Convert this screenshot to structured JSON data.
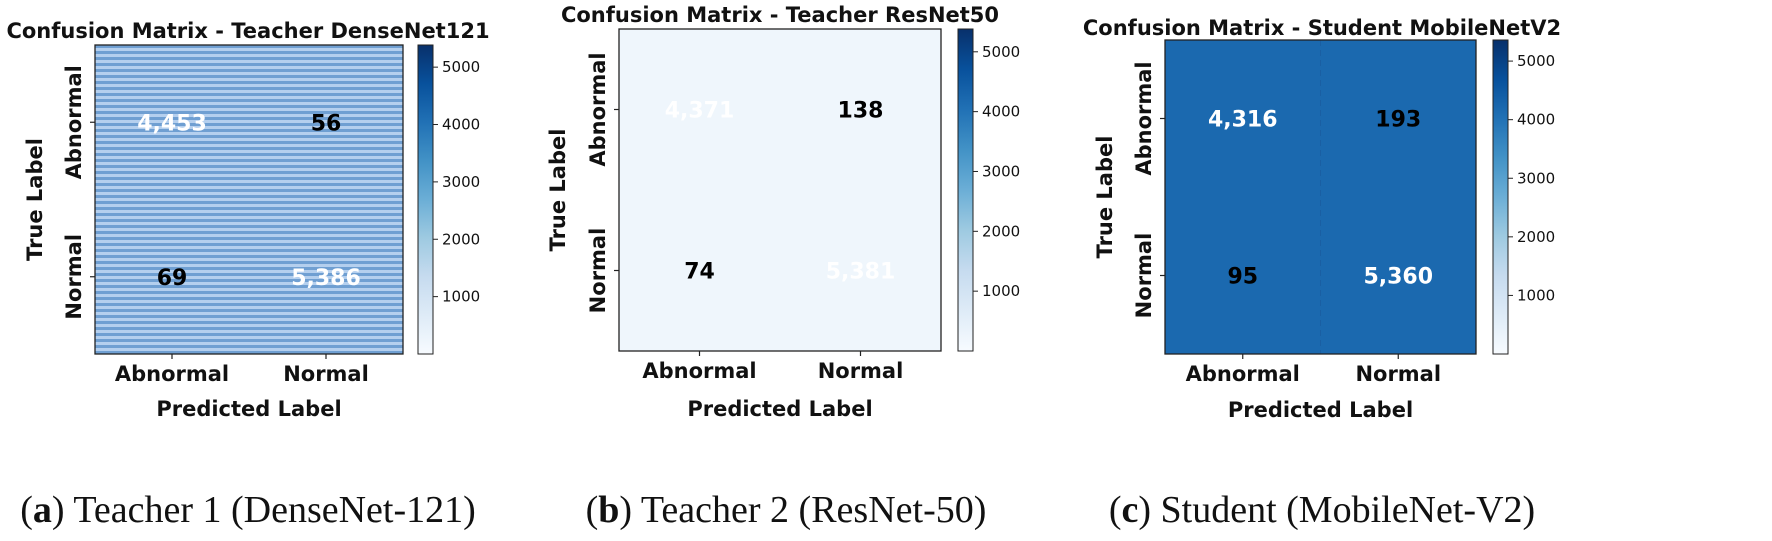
{
  "figure": {
    "captions": [
      {
        "letter": "a",
        "text": "Teacher 1 (DenseNet-121)"
      },
      {
        "letter": "b",
        "text": "Teacher 2 (ResNet-50)"
      },
      {
        "letter": "c",
        "text": "Student (MobileNet-V2)"
      }
    ]
  },
  "chart_data": [
    {
      "type": "heatmap",
      "title": "Confusion Matrix - Teacher DenseNet121",
      "xlabel": "Predicted Label",
      "ylabel": "True Label",
      "x_categories": [
        "Abnormal",
        "Normal"
      ],
      "y_categories": [
        "Abnormal",
        "Normal"
      ],
      "values": [
        [
          4453,
          56
        ],
        [
          69,
          5386
        ]
      ],
      "cell_labels": [
        [
          "4,453",
          "56"
        ],
        [
          "69",
          "5,386"
        ]
      ],
      "displayed_fill": [
        [
          0.55,
          0.55
        ],
        [
          0.55,
          0.55
        ]
      ],
      "text_colors": [
        [
          "#ffffff",
          "#000000"
        ],
        [
          "#000000",
          "#ffffff"
        ]
      ],
      "colorbar": {
        "ticks": [
          1000,
          2000,
          3000,
          4000,
          5000
        ],
        "range": [
          56,
          5386
        ],
        "colormap": "Blues"
      },
      "striped": true
    },
    {
      "type": "heatmap",
      "title": "Confusion Matrix - Teacher ResNet50",
      "xlabel": "Predicted Label",
      "ylabel": "True Label",
      "x_categories": [
        "Abnormal",
        "Normal"
      ],
      "y_categories": [
        "Abnormal",
        "Normal"
      ],
      "values": [
        [
          4371,
          138
        ],
        [
          74,
          5381
        ]
      ],
      "cell_labels": [
        [
          "4,371",
          "138"
        ],
        [
          "74",
          "5,381"
        ]
      ],
      "displayed_fill": [
        [
          0.04,
          0.04
        ],
        [
          0.04,
          0.04
        ]
      ],
      "text_colors": [
        [
          "#ffffff",
          "#000000"
        ],
        [
          "#000000",
          "#ffffff"
        ]
      ],
      "colorbar": {
        "ticks": [
          1000,
          2000,
          3000,
          4000,
          5000
        ],
        "range": [
          74,
          5381
        ],
        "colormap": "Blues"
      },
      "striped": false
    },
    {
      "type": "heatmap",
      "title": "Confusion Matrix - Student MobileNetV2",
      "xlabel": "Predicted Label",
      "ylabel": "True Label",
      "x_categories": [
        "Abnormal",
        "Normal"
      ],
      "y_categories": [
        "Abnormal",
        "Normal"
      ],
      "values": [
        [
          4316,
          193
        ],
        [
          95,
          5360
        ]
      ],
      "cell_labels": [
        [
          "4,316",
          "193"
        ],
        [
          "95",
          "5,360"
        ]
      ],
      "displayed_fill": [
        [
          0.78,
          0.78
        ],
        [
          0.78,
          0.78
        ]
      ],
      "text_colors": [
        [
          "#ffffff",
          "#000000"
        ],
        [
          "#000000",
          "#ffffff"
        ]
      ],
      "colorbar": {
        "ticks": [
          1000,
          2000,
          3000,
          4000,
          5000
        ],
        "range": [
          95,
          5360
        ],
        "colormap": "Blues"
      },
      "striped": false
    }
  ]
}
